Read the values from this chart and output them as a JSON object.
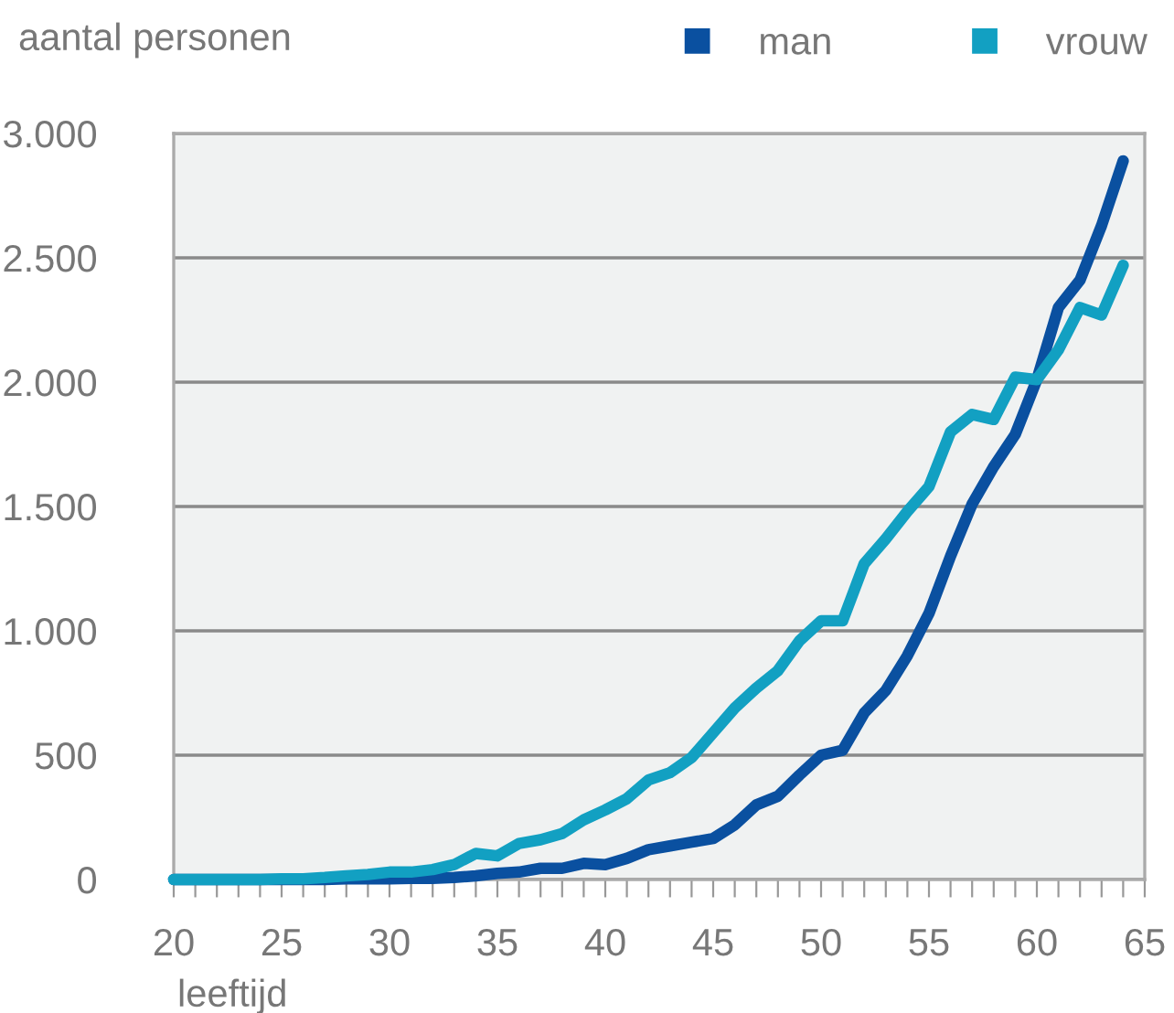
{
  "chart_data": {
    "type": "line",
    "ylabel": "aantal personen",
    "xlabel": "leeftijd",
    "x": [
      20,
      21,
      22,
      23,
      24,
      25,
      26,
      27,
      28,
      29,
      30,
      31,
      32,
      33,
      34,
      35,
      36,
      37,
      38,
      39,
      40,
      41,
      42,
      43,
      44,
      45,
      46,
      47,
      48,
      49,
      50,
      51,
      52,
      53,
      54,
      55,
      56,
      57,
      58,
      59,
      60,
      61,
      62,
      63,
      64
    ],
    "series": [
      {
        "name": "man",
        "color": "#0a50a0",
        "values": [
          0,
          0,
          0,
          0,
          0,
          0,
          0,
          0,
          3,
          3,
          3,
          5,
          5,
          8,
          15,
          25,
          30,
          45,
          45,
          65,
          60,
          85,
          120,
          135,
          150,
          165,
          220,
          300,
          335,
          420,
          500,
          520,
          670,
          760,
          900,
          1070,
          1300,
          1510,
          1660,
          1790,
          2010,
          2300,
          2410,
          2630,
          2890
        ]
      },
      {
        "name": "vrouw",
        "color": "#12a0c2",
        "values": [
          0,
          0,
          0,
          0,
          0,
          3,
          3,
          8,
          15,
          20,
          30,
          30,
          40,
          60,
          105,
          95,
          145,
          160,
          185,
          240,
          280,
          325,
          400,
          430,
          490,
          590,
          690,
          770,
          840,
          960,
          1040,
          1040,
          1270,
          1370,
          1480,
          1580,
          1800,
          1870,
          1850,
          2020,
          2010,
          2130,
          2300,
          2270,
          2470
        ]
      }
    ],
    "xlim": [
      20,
      65
    ],
    "ylim": [
      0,
      3000
    ],
    "xticks": [
      20,
      {
        "value": 21,
        "label": null
      },
      {
        "value": 22,
        "label": null
      },
      {
        "value": 23,
        "label": null
      },
      {
        "value": 24,
        "label": null
      },
      25,
      {
        "value": 26,
        "label": null
      },
      {
        "value": 27,
        "label": null
      },
      {
        "value": 28,
        "label": null
      },
      {
        "value": 29,
        "label": null
      },
      30,
      {
        "value": 31,
        "label": null
      },
      {
        "value": 32,
        "label": null
      },
      {
        "value": 33,
        "label": null
      },
      {
        "value": 34,
        "label": null
      },
      35,
      {
        "value": 36,
        "label": null
      },
      {
        "value": 37,
        "label": null
      },
      {
        "value": 38,
        "label": null
      },
      {
        "value": 39,
        "label": null
      },
      40,
      {
        "value": 41,
        "label": null
      },
      {
        "value": 42,
        "label": null
      },
      {
        "value": 43,
        "label": null
      },
      {
        "value": 44,
        "label": null
      },
      45,
      {
        "value": 46,
        "label": null
      },
      {
        "value": 47,
        "label": null
      },
      {
        "value": 48,
        "label": null
      },
      {
        "value": 49,
        "label": null
      },
      50,
      {
        "value": 51,
        "label": null
      },
      {
        "value": 52,
        "label": null
      },
      {
        "value": 53,
        "label": null
      },
      {
        "value": 54,
        "label": null
      },
      55,
      {
        "value": 56,
        "label": null
      },
      {
        "value": 57,
        "label": null
      },
      {
        "value": 58,
        "label": null
      },
      {
        "value": 59,
        "label": null
      },
      60,
      {
        "value": 61,
        "label": null
      },
      {
        "value": 62,
        "label": null
      },
      {
        "value": 63,
        "label": null
      },
      {
        "value": 64,
        "label": null
      },
      65
    ],
    "yticks": [
      0,
      500,
      {
        "value": 1000,
        "label": "1.000"
      },
      {
        "value": 1500,
        "label": "1.500"
      },
      {
        "value": 2000,
        "label": "2.000"
      },
      {
        "value": 2500,
        "label": "2.500"
      },
      {
        "value": 3000,
        "label": "3.000"
      }
    ],
    "grid": "y",
    "legend": "top right",
    "marker": "none",
    "line_style": "solid"
  }
}
